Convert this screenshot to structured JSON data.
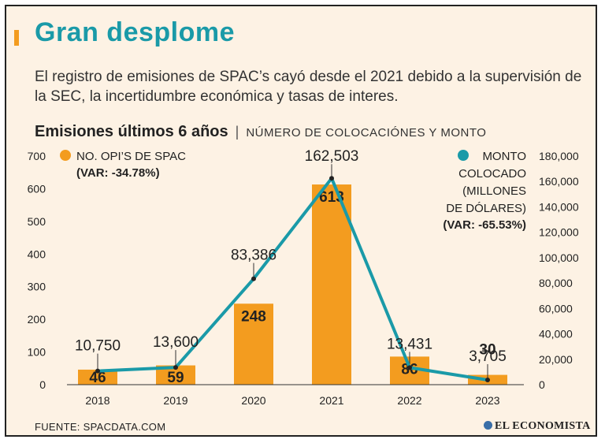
{
  "header": {
    "title": "Gran desplome",
    "subtitle": "El registro de emisiones de SPAC’s cayó desde el 2021 debido a la supervisión de la SEC, la incertidumbre económica y tasas de interes."
  },
  "chart_heading": {
    "main": "Emisiones últimos 6 años",
    "separator": "|",
    "sub": "NÚMERO DE COLOCACIÓNES Y MONTO"
  },
  "chart_data": {
    "type": "bar+line",
    "categories": [
      "2018",
      "2019",
      "2020",
      "2021",
      "2022",
      "2023"
    ],
    "series": [
      {
        "name": "NO. OPI’S DE SPAC",
        "var_label": "(VAR: -34.78%)",
        "kind": "bar",
        "axis": "left",
        "values": [
          46,
          59,
          248,
          613,
          86,
          30
        ],
        "value_labels": [
          "46",
          "59",
          "248",
          "613",
          "86",
          "30"
        ]
      },
      {
        "name_lines": [
          "MONTO",
          "COLOCADO",
          "(MILLONES",
          "DE DÓLARES)"
        ],
        "var_label": "(VAR: -65.53%)",
        "kind": "line",
        "axis": "right",
        "values": [
          10750,
          13600,
          83386,
          162503,
          13431,
          3705
        ],
        "value_labels": [
          "10,750",
          "13,600",
          "83,386",
          "162,503",
          "13,431",
          "3,705"
        ]
      }
    ],
    "left_axis": {
      "range": [
        0,
        700
      ],
      "ticks": [
        "0",
        "100",
        "200",
        "300",
        "400",
        "500",
        "600",
        "700"
      ]
    },
    "right_axis": {
      "range": [
        0,
        180000
      ],
      "ticks": [
        "0",
        "20,000",
        "40,000",
        "60,000",
        "80,000",
        "100,000",
        "120,000",
        "140,000",
        "160,000",
        "180,000"
      ]
    },
    "colors": {
      "bar": "#f39c1f",
      "line": "#1a9aa8",
      "text": "#222222"
    }
  },
  "footer": {
    "source": "FUENTE: SPACDATA.COM",
    "logo": "EL ECONOMISTA"
  }
}
